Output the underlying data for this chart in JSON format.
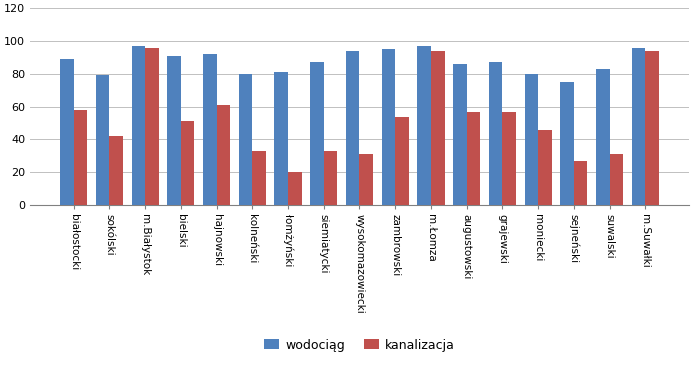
{
  "categories": [
    "białostocki",
    "sokólski",
    "m.Białystok",
    "bielski",
    "hajnowski",
    "kolneński",
    "łomżyński",
    "siemiatycki",
    "wysokomazowiecki",
    "zambrowski",
    "m.Łomza",
    "augustowski",
    "grajewski",
    "moniecki",
    "sejneński",
    "suwalski",
    "m.Suwałki"
  ],
  "wodociag": [
    89,
    79,
    97,
    91,
    92,
    80,
    81,
    87,
    94,
    95,
    97,
    86,
    87,
    80,
    75,
    83,
    96
  ],
  "kanalizacja": [
    58,
    42,
    96,
    51,
    61,
    33,
    20,
    33,
    31,
    54,
    94,
    57,
    57,
    46,
    27,
    31,
    94
  ],
  "color_wodociag": "#4F81BD",
  "color_kanalizacja": "#C0504D",
  "ylim": [
    0,
    120
  ],
  "yticks": [
    0,
    20,
    40,
    60,
    80,
    100,
    120
  ],
  "legend_labels": [
    "wodociąg",
    "kanalizacja"
  ],
  "bar_width": 0.38,
  "figsize": [
    6.93,
    3.73
  ],
  "dpi": 100,
  "background_color": "#FFFFFF",
  "grid_color": "#C0C0C0"
}
